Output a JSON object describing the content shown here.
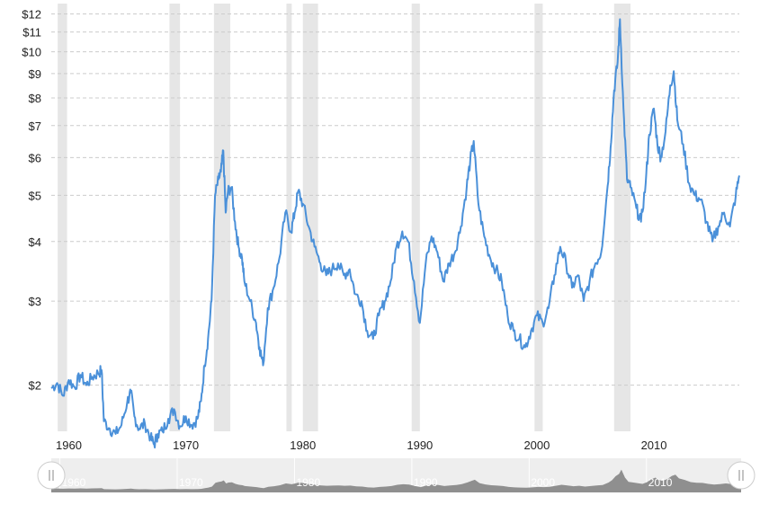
{
  "chart_data": {
    "type": "line",
    "title": "",
    "xlabel": "",
    "ylabel": "",
    "y_scale": "log",
    "xlim": [
      1958.5,
      2017.3
    ],
    "ylim": [
      1.6,
      12.4
    ],
    "grid": "horizontal dashed",
    "line_color": "#4a90d9",
    "recession_color": "#e6e6e6",
    "y_ticks": [
      {
        "value": 2,
        "label": "$2"
      },
      {
        "value": 3,
        "label": "$3"
      },
      {
        "value": 4,
        "label": "$4"
      },
      {
        "value": 5,
        "label": "$5"
      },
      {
        "value": 6,
        "label": "$6"
      },
      {
        "value": 7,
        "label": "$7"
      },
      {
        "value": 8,
        "label": "$8"
      },
      {
        "value": 9,
        "label": "$9"
      },
      {
        "value": 10,
        "label": "$10"
      },
      {
        "value": 11,
        "label": "$11"
      },
      {
        "value": 12,
        "label": "$12"
      }
    ],
    "x_ticks": [
      {
        "value": 1960,
        "label": "1960"
      },
      {
        "value": 1970,
        "label": "1970"
      },
      {
        "value": 1980,
        "label": "1980"
      },
      {
        "value": 1990,
        "label": "1990"
      },
      {
        "value": 2000,
        "label": "2000"
      },
      {
        "value": 2010,
        "label": "2010"
      }
    ],
    "recessions": [
      [
        1959.05,
        1959.85
      ],
      [
        1968.6,
        1969.5
      ],
      [
        1972.4,
        1973.8
      ],
      [
        1978.6,
        1979.05
      ],
      [
        1980.0,
        1981.3
      ],
      [
        1989.3,
        1990.0
      ],
      [
        1999.8,
        2000.5
      ],
      [
        2006.6,
        2008.0
      ]
    ],
    "series": [
      {
        "values": [
          [
            1958.5,
            1.97
          ],
          [
            1959.0,
            2.02
          ],
          [
            1959.5,
            1.9
          ],
          [
            1960.0,
            2.05
          ],
          [
            1960.5,
            1.98
          ],
          [
            1961.0,
            2.1
          ],
          [
            1961.5,
            2.0
          ],
          [
            1962.0,
            2.08
          ],
          [
            1962.5,
            2.12
          ],
          [
            1962.8,
            2.15
          ],
          [
            1963.0,
            1.68
          ],
          [
            1963.5,
            1.62
          ],
          [
            1964.0,
            1.58
          ],
          [
            1964.5,
            1.65
          ],
          [
            1965.0,
            1.85
          ],
          [
            1965.3,
            1.93
          ],
          [
            1965.6,
            1.72
          ],
          [
            1966.0,
            1.62
          ],
          [
            1966.5,
            1.66
          ],
          [
            1967.0,
            1.55
          ],
          [
            1967.3,
            1.5
          ],
          [
            1967.6,
            1.58
          ],
          [
            1968.0,
            1.6
          ],
          [
            1968.5,
            1.7
          ],
          [
            1969.0,
            1.78
          ],
          [
            1969.5,
            1.64
          ],
          [
            1970.0,
            1.72
          ],
          [
            1970.5,
            1.65
          ],
          [
            1971.0,
            1.7
          ],
          [
            1971.3,
            1.85
          ],
          [
            1971.6,
            2.2
          ],
          [
            1971.9,
            2.5
          ],
          [
            1972.2,
            3.0
          ],
          [
            1972.5,
            5.0
          ],
          [
            1972.8,
            5.4
          ],
          [
            1973.0,
            5.6
          ],
          [
            1973.2,
            6.2
          ],
          [
            1973.4,
            4.6
          ],
          [
            1973.6,
            5.1
          ],
          [
            1973.9,
            5.2
          ],
          [
            1974.2,
            4.4
          ],
          [
            1974.5,
            3.9
          ],
          [
            1974.8,
            3.7
          ],
          [
            1975.0,
            3.3
          ],
          [
            1975.5,
            3.0
          ],
          [
            1976.0,
            2.7
          ],
          [
            1976.3,
            2.4
          ],
          [
            1976.6,
            2.2
          ],
          [
            1977.0,
            2.9
          ],
          [
            1977.5,
            3.2
          ],
          [
            1978.0,
            3.7
          ],
          [
            1978.5,
            4.6
          ],
          [
            1979.0,
            4.2
          ],
          [
            1979.3,
            4.6
          ],
          [
            1979.6,
            5.1
          ],
          [
            1980.0,
            4.8
          ],
          [
            1980.5,
            4.3
          ],
          [
            1981.0,
            3.9
          ],
          [
            1981.5,
            3.6
          ],
          [
            1982.0,
            3.4
          ],
          [
            1982.5,
            3.5
          ],
          [
            1983.0,
            3.6
          ],
          [
            1983.5,
            3.4
          ],
          [
            1984.0,
            3.5
          ],
          [
            1984.5,
            3.1
          ],
          [
            1985.0,
            3.0
          ],
          [
            1985.5,
            2.6
          ],
          [
            1986.0,
            2.5
          ],
          [
            1986.5,
            2.8
          ],
          [
            1987.0,
            3.0
          ],
          [
            1987.5,
            3.3
          ],
          [
            1988.0,
            3.9
          ],
          [
            1988.5,
            4.2
          ],
          [
            1989.0,
            4.0
          ],
          [
            1989.5,
            3.3
          ],
          [
            1990.0,
            2.7
          ],
          [
            1990.5,
            3.6
          ],
          [
            1991.0,
            4.1
          ],
          [
            1991.5,
            3.8
          ],
          [
            1992.0,
            3.3
          ],
          [
            1992.5,
            3.6
          ],
          [
            1993.0,
            3.8
          ],
          [
            1993.5,
            4.3
          ],
          [
            1994.0,
            5.2
          ],
          [
            1994.3,
            5.9
          ],
          [
            1994.6,
            6.5
          ],
          [
            1995.0,
            4.8
          ],
          [
            1995.5,
            4.1
          ],
          [
            1996.0,
            3.7
          ],
          [
            1996.5,
            3.5
          ],
          [
            1997.0,
            3.3
          ],
          [
            1997.5,
            2.8
          ],
          [
            1998.0,
            2.6
          ],
          [
            1998.5,
            2.5
          ],
          [
            1999.0,
            2.4
          ],
          [
            1999.5,
            2.6
          ],
          [
            2000.0,
            2.8
          ],
          [
            2000.5,
            2.7
          ],
          [
            2001.0,
            2.9
          ],
          [
            2001.5,
            3.4
          ],
          [
            2002.0,
            3.9
          ],
          [
            2002.5,
            3.6
          ],
          [
            2003.0,
            3.2
          ],
          [
            2003.5,
            3.4
          ],
          [
            2004.0,
            3.0
          ],
          [
            2004.5,
            3.3
          ],
          [
            2005.0,
            3.6
          ],
          [
            2005.5,
            3.8
          ],
          [
            2006.0,
            5.1
          ],
          [
            2006.3,
            6.3
          ],
          [
            2006.6,
            8.3
          ],
          [
            2006.9,
            9.5
          ],
          [
            2007.1,
            11.7
          ],
          [
            2007.4,
            7.6
          ],
          [
            2007.7,
            5.4
          ],
          [
            2008.0,
            5.2
          ],
          [
            2008.5,
            4.7
          ],
          [
            2008.9,
            4.4
          ],
          [
            2009.3,
            5.3
          ],
          [
            2009.6,
            6.7
          ],
          [
            2010.0,
            7.6
          ],
          [
            2010.3,
            6.4
          ],
          [
            2010.6,
            6.0
          ],
          [
            2011.0,
            6.8
          ],
          [
            2011.4,
            8.5
          ],
          [
            2011.7,
            9.1
          ],
          [
            2012.0,
            7.2
          ],
          [
            2012.5,
            6.4
          ],
          [
            2013.0,
            5.3
          ],
          [
            2013.5,
            5.0
          ],
          [
            2014.0,
            4.9
          ],
          [
            2014.5,
            4.4
          ],
          [
            2015.0,
            4.0
          ],
          [
            2015.5,
            4.3
          ],
          [
            2016.0,
            4.6
          ],
          [
            2016.5,
            4.3
          ],
          [
            2017.0,
            5.0
          ],
          [
            2017.3,
            5.5
          ]
        ]
      }
    ],
    "navigator": {
      "labels": [
        "1960",
        "1970",
        "1980",
        "1990",
        "2000",
        "2010"
      ]
    }
  }
}
